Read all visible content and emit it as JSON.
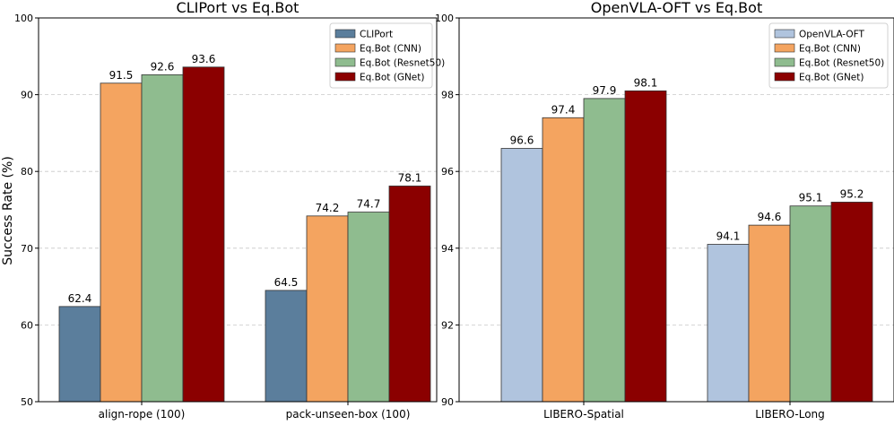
{
  "y_axis_label": "Success Rate (%)",
  "chart_data": [
    {
      "type": "bar",
      "title": "CLIPort vs Eq.Bot",
      "xlabel": "",
      "ylabel": "Success Rate (%)",
      "ylim": [
        50,
        100
      ],
      "yticks": [
        50,
        60,
        70,
        80,
        90,
        100
      ],
      "grid": true,
      "legend_position": "top-right",
      "categories": [
        "align-rope (100)",
        "pack-unseen-box (100)"
      ],
      "series": [
        {
          "name": "CLIPort",
          "color": "#5b7e9c",
          "values": [
            62.4,
            64.5
          ]
        },
        {
          "name": "Eq.Bot (CNN)",
          "color": "#f4a460",
          "values": [
            91.5,
            74.2
          ]
        },
        {
          "name": "Eq.Bot (Resnet50)",
          "color": "#8fbc8f",
          "values": [
            92.6,
            74.7
          ]
        },
        {
          "name": "Eq.Bot (GNet)",
          "color": "#8b0000",
          "values": [
            93.6,
            78.1
          ]
        }
      ]
    },
    {
      "type": "bar",
      "title": "OpenVLA-OFT vs Eq.Bot",
      "xlabel": "",
      "ylabel": "",
      "ylim": [
        90,
        100
      ],
      "yticks": [
        90,
        92,
        94,
        96,
        98,
        100
      ],
      "grid": true,
      "legend_position": "top-right",
      "categories": [
        "LIBERO-Spatial",
        "LIBERO-Long"
      ],
      "series": [
        {
          "name": "OpenVLA-OFT",
          "color": "#b0c4de",
          "values": [
            96.6,
            94.1
          ]
        },
        {
          "name": "Eq.Bot (CNN)",
          "color": "#f4a460",
          "values": [
            97.4,
            94.6
          ]
        },
        {
          "name": "Eq.Bot (Resnet50)",
          "color": "#8fbc8f",
          "values": [
            97.9,
            95.1
          ]
        },
        {
          "name": "Eq.Bot (GNet)",
          "color": "#8b0000",
          "values": [
            98.1,
            95.2
          ]
        }
      ]
    }
  ]
}
